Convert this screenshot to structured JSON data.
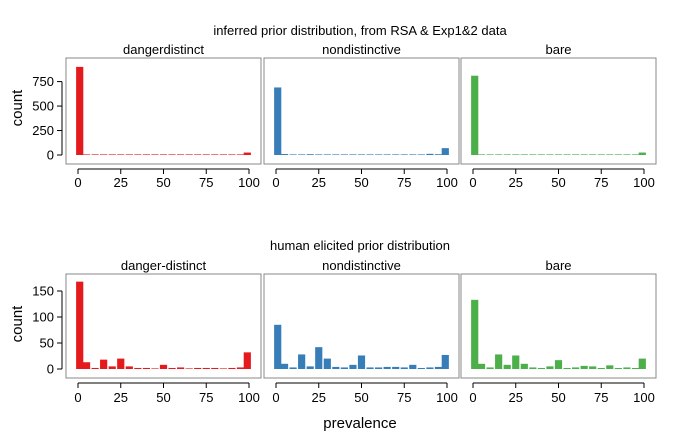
{
  "chart_data": [
    {
      "type": "bar",
      "title": "inferred prior distribution, from RSA & Exp1&2 data",
      "xlabel": "",
      "ylabel": "count",
      "xlim": [
        0,
        100
      ],
      "ylim": [
        0,
        950
      ],
      "x_ticks": [
        0,
        25,
        50,
        75,
        100
      ],
      "y_ticks": [
        0,
        250,
        500,
        750
      ],
      "panels": [
        {
          "facet": "dangerdistinct",
          "color": "#e41a1c",
          "x": [
            1,
            5,
            10,
            15,
            20,
            25,
            30,
            35,
            40,
            45,
            50,
            55,
            60,
            65,
            70,
            75,
            80,
            85,
            90,
            95,
            99
          ],
          "values": [
            900,
            3,
            2,
            2,
            2,
            2,
            1,
            1,
            1,
            1,
            3,
            1,
            1,
            1,
            1,
            1,
            2,
            1,
            2,
            3,
            25
          ]
        },
        {
          "facet": "nondistinctive",
          "color": "#377eb8",
          "x": [
            1,
            5,
            10,
            15,
            20,
            25,
            30,
            35,
            40,
            45,
            50,
            55,
            60,
            65,
            70,
            75,
            80,
            85,
            90,
            95,
            99
          ],
          "values": [
            690,
            10,
            6,
            4,
            8,
            3,
            3,
            2,
            3,
            2,
            4,
            2,
            2,
            2,
            3,
            6,
            6,
            4,
            12,
            8,
            70
          ]
        },
        {
          "facet": "bare",
          "color": "#4daf4a",
          "x": [
            1,
            5,
            10,
            15,
            20,
            25,
            30,
            35,
            40,
            45,
            50,
            55,
            60,
            65,
            70,
            75,
            80,
            85,
            90,
            95,
            99
          ],
          "values": [
            810,
            5,
            3,
            3,
            5,
            2,
            2,
            1,
            2,
            1,
            3,
            1,
            1,
            1,
            2,
            3,
            3,
            2,
            4,
            3,
            25
          ]
        }
      ]
    },
    {
      "type": "bar",
      "title": "human elicited prior distribution",
      "xlabel": "prevalence",
      "ylabel": "count",
      "xlim": [
        0,
        100
      ],
      "ylim": [
        0,
        175
      ],
      "x_ticks": [
        0,
        25,
        50,
        75,
        100
      ],
      "y_ticks": [
        0,
        50,
        100,
        150
      ],
      "panels": [
        {
          "facet": "danger-distinct",
          "color": "#e41a1c",
          "x": [
            1,
            5,
            10,
            15,
            20,
            25,
            30,
            35,
            40,
            45,
            50,
            55,
            60,
            65,
            70,
            75,
            80,
            85,
            90,
            95,
            99
          ],
          "values": [
            168,
            13,
            2,
            18,
            5,
            20,
            5,
            2,
            2,
            1,
            8,
            2,
            3,
            1,
            2,
            2,
            2,
            1,
            2,
            3,
            32
          ]
        },
        {
          "facet": "nondistinctive",
          "color": "#377eb8",
          "x": [
            1,
            5,
            10,
            15,
            20,
            25,
            30,
            35,
            40,
            45,
            50,
            55,
            60,
            65,
            70,
            75,
            80,
            85,
            90,
            95,
            99
          ],
          "values": [
            85,
            10,
            3,
            28,
            5,
            42,
            20,
            4,
            3,
            8,
            26,
            3,
            3,
            4,
            4,
            3,
            8,
            2,
            3,
            4,
            27
          ]
        },
        {
          "facet": "bare",
          "color": "#4daf4a",
          "x": [
            1,
            5,
            10,
            15,
            20,
            25,
            30,
            35,
            40,
            45,
            50,
            55,
            60,
            65,
            70,
            75,
            80,
            85,
            90,
            95,
            99
          ],
          "values": [
            133,
            10,
            3,
            28,
            8,
            26,
            10,
            3,
            2,
            5,
            17,
            2,
            3,
            6,
            5,
            2,
            7,
            2,
            3,
            2,
            20
          ]
        }
      ]
    }
  ]
}
